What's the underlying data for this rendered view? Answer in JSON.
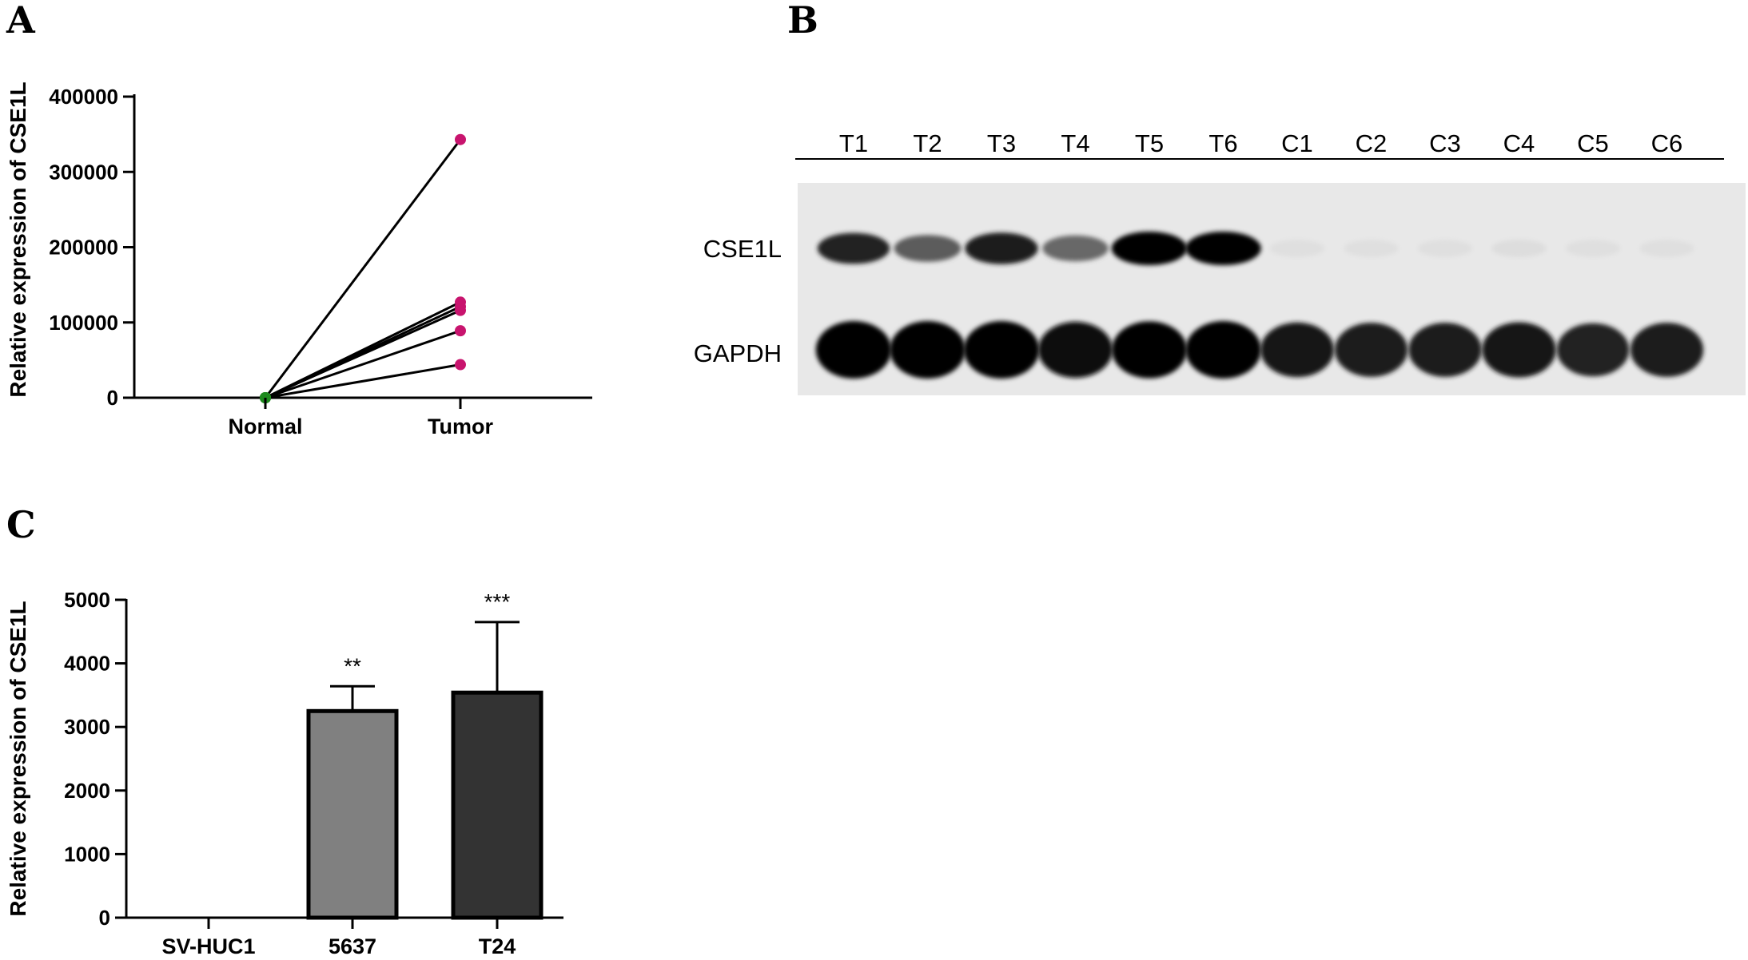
{
  "panels": {
    "a": {
      "letter": "A"
    },
    "b": {
      "letter": "B"
    },
    "c": {
      "letter": "C"
    }
  },
  "chart_data": [
    {
      "type": "line",
      "panel": "A",
      "ylabel": "Relative expression of CSE1L",
      "xlabel": "",
      "categories": [
        "Normal",
        "Tumor"
      ],
      "ylim": [
        0,
        400000
      ],
      "yticks": [
        0,
        100000,
        200000,
        300000,
        400000
      ],
      "normal_color": "#1e8a1e",
      "tumor_color": "#c8146e",
      "series": [
        {
          "values": [
            1,
            343000
          ]
        },
        {
          "values": [
            1,
            127000
          ]
        },
        {
          "values": [
            1,
            121000
          ]
        },
        {
          "values": [
            1,
            116000
          ]
        },
        {
          "values": [
            1,
            89000
          ]
        },
        {
          "values": [
            1,
            44000
          ]
        }
      ]
    },
    {
      "type": "bar",
      "panel": "C",
      "ylabel": "Relative expression of CSE1L",
      "xlabel": "",
      "categories": [
        "SV-HUC1",
        "5637",
        "T24"
      ],
      "values": [
        1,
        3250,
        3540
      ],
      "errors": [
        0,
        390,
        1110
      ],
      "significance": [
        "",
        "**",
        "***"
      ],
      "bar_colors": [
        "#ffffff",
        "#808080",
        "#333333"
      ],
      "ylim": [
        0,
        5000
      ],
      "yticks": [
        0,
        1000,
        2000,
        3000,
        4000,
        5000
      ]
    }
  ],
  "western_blot": {
    "lanes": [
      "T1",
      "T2",
      "T3",
      "T4",
      "T5",
      "T6",
      "C1",
      "C2",
      "C3",
      "C4",
      "C5",
      "C6"
    ],
    "rows": [
      {
        "label": "CSE1L",
        "intensity": [
          0.85,
          0.6,
          0.88,
          0.55,
          1.0,
          1.0,
          0.03,
          0.03,
          0.03,
          0.04,
          0.03,
          0.03
        ]
      },
      {
        "label": "GAPDH",
        "intensity": [
          1.0,
          1.0,
          1.0,
          0.95,
          0.98,
          1.0,
          0.9,
          0.88,
          0.88,
          0.92,
          0.85,
          0.88
        ]
      }
    ]
  }
}
